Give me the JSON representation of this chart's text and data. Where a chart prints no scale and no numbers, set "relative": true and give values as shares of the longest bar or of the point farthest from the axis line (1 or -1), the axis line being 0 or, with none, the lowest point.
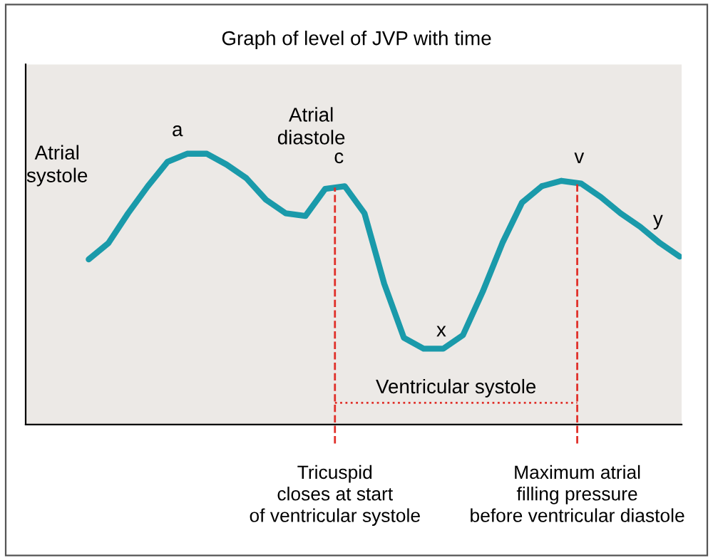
{
  "chart_data": {
    "type": "line",
    "title": "Graph of level of JVP with time",
    "relative": true,
    "color": "#1a9aaa",
    "categories": [
      null,
      null,
      null,
      null,
      null,
      null,
      null,
      null,
      null,
      null,
      null,
      null,
      null,
      null,
      null,
      null,
      null,
      null,
      null,
      null,
      null,
      null,
      null,
      null,
      null,
      null,
      null,
      null,
      null,
      null,
      null
    ],
    "values": [
      0.61,
      0.67,
      0.78,
      0.88,
      0.97,
      1.0,
      1.0,
      0.96,
      0.91,
      0.83,
      0.78,
      0.77,
      0.87,
      0.88,
      0.78,
      0.52,
      0.32,
      0.28,
      0.28,
      0.33,
      0.49,
      0.67,
      0.82,
      0.88,
      0.9,
      0.89,
      0.84,
      0.78,
      0.73,
      0.67,
      0.62
    ],
    "annotations": [
      "Atrial\nsystole",
      "a",
      "Atrial\ndiastole",
      "c",
      "x",
      "v",
      "y",
      "Ventricular systole",
      "Tricuspid\ncloses at start\nof ventricular systole",
      "Maximum atrial\nfilling pressure\nbefore ventricular diastole"
    ],
    "grid": false,
    "legend": false
  }
}
